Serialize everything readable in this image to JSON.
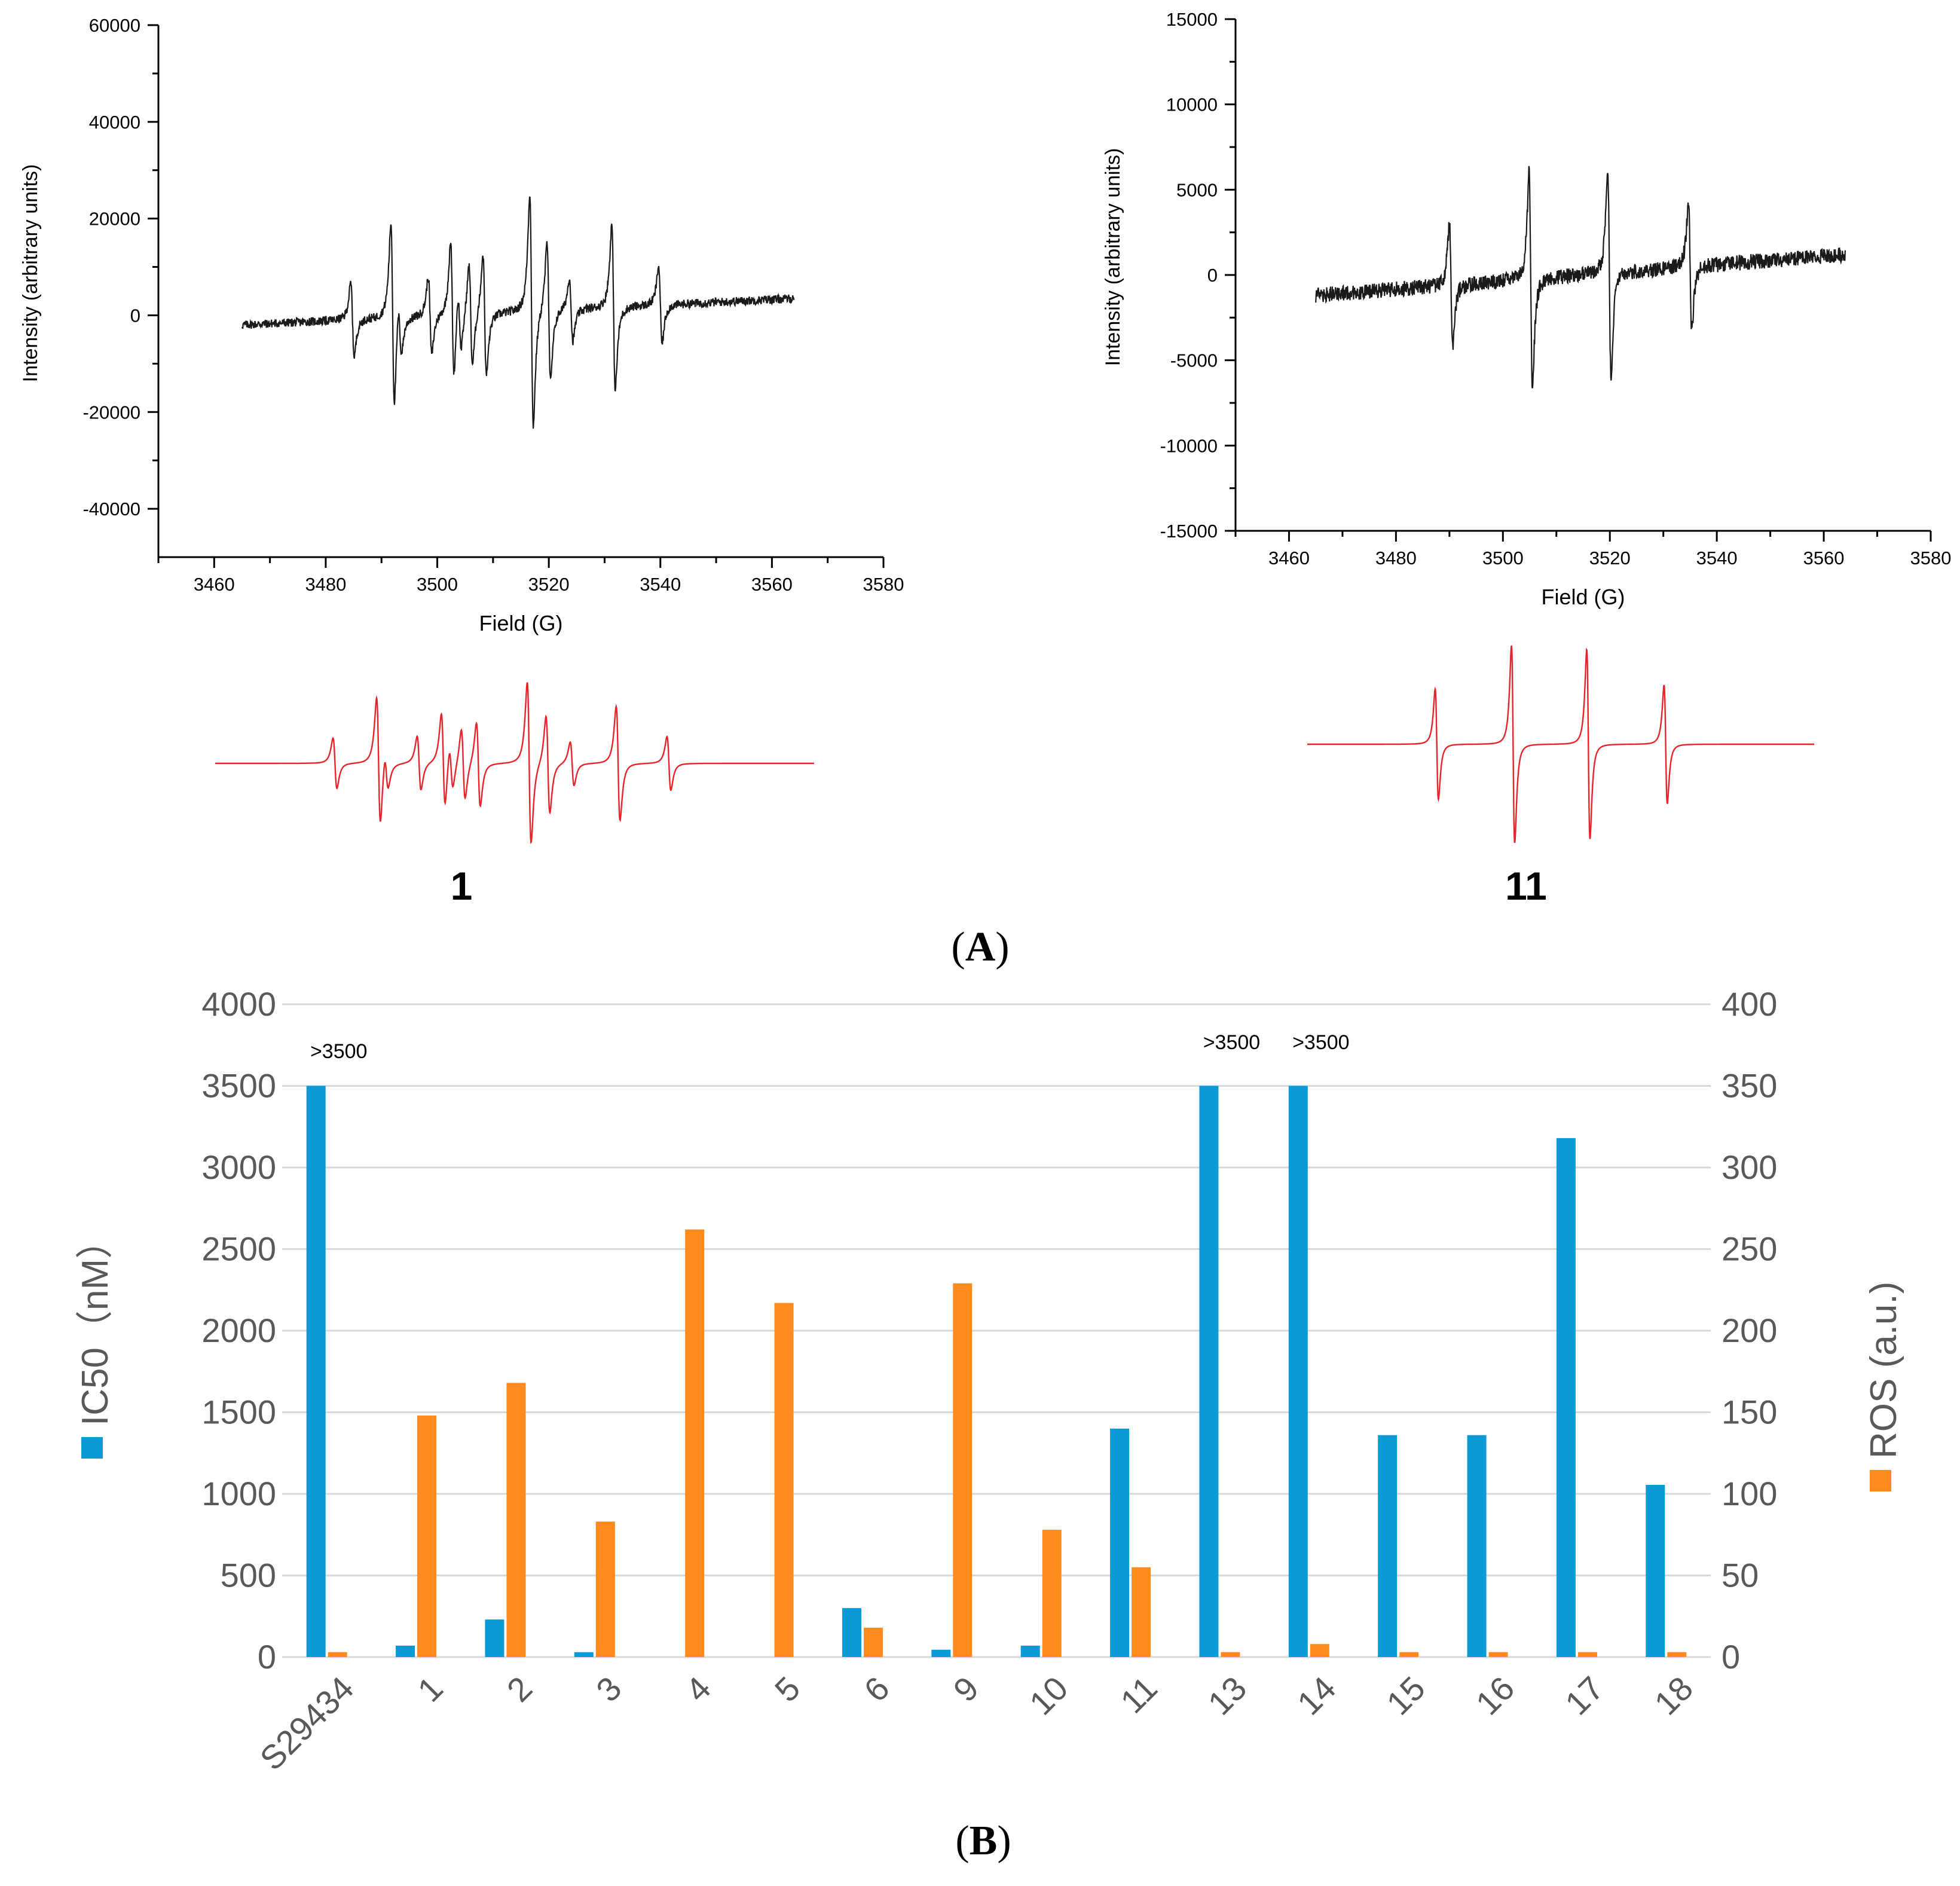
{
  "panel_a": {
    "label": "A",
    "spectra": [
      {
        "compound_label": "1",
        "title": "",
        "xlabel": "Field (G)",
        "ylabel": "Intensity (arbitrary units)",
        "xlim": [
          3450,
          3580
        ],
        "ylim": [
          -50000,
          60000
        ],
        "xticks": [
          3460,
          3480,
          3500,
          3520,
          3540,
          3560,
          3580
        ],
        "yticks": [
          -40000,
          -20000,
          0,
          20000,
          40000,
          60000
        ],
        "field_range": [
          3465,
          3564
        ],
        "baseline": {
          "start": -2000,
          "end": 3500
        },
        "noise": 900,
        "lines": [
          {
            "x": 3484.8,
            "a": 15000
          },
          {
            "x": 3492.0,
            "a": 38000
          },
          {
            "x": 3493.3,
            "a": 11000
          },
          {
            "x": 3498.7,
            "a": 16000
          },
          {
            "x": 3502.7,
            "a": 28000
          },
          {
            "x": 3504.0,
            "a": 13000
          },
          {
            "x": 3506.0,
            "a": 21000
          },
          {
            "x": 3508.5,
            "a": 25000
          },
          {
            "x": 3516.9,
            "a": 48000
          },
          {
            "x": 3520.0,
            "a": 29000
          },
          {
            "x": 3524.0,
            "a": 13000
          },
          {
            "x": 3531.6,
            "a": 34000
          },
          {
            "x": 3540.0,
            "a": 16000
          }
        ]
      },
      {
        "compound_label": "11",
        "title": "",
        "xlabel": "Field (G)",
        "ylabel": "Intensity (arbitrary units)",
        "xlim": [
          3450,
          3580
        ],
        "ylim": [
          -15000,
          15000
        ],
        "xticks": [
          3460,
          3480,
          3500,
          3520,
          3540,
          3560,
          3580
        ],
        "yticks": [
          -15000,
          -10000,
          -5000,
          0,
          5000,
          10000,
          15000
        ],
        "field_range": [
          3465,
          3564
        ],
        "baseline": {
          "start": -1200,
          "end": 1200
        },
        "noise": 450,
        "lines": [
          {
            "x": 3490.3,
            "a": 7000
          },
          {
            "x": 3505.2,
            "a": 12500
          },
          {
            "x": 3519.9,
            "a": 12000
          },
          {
            "x": 3535.0,
            "a": 7500
          }
        ]
      }
    ]
  },
  "panel_b": {
    "label": "B",
    "legend": {
      "left_symbol_color": "#0a9bd7",
      "right_symbol_color": "#ff8a1d"
    },
    "annotations": [
      {
        "category": "S29434",
        "text": ">3500"
      },
      {
        "category": "13",
        "text": ">3500"
      },
      {
        "category": "14",
        "text": ">3500"
      }
    ]
  },
  "chart_data": [
    {
      "type": "line",
      "title": "",
      "xlabel": "Field (G)",
      "ylabel": "Intensity (arbitrary units)",
      "xlim": [
        3450,
        3580
      ],
      "ylim": [
        -50000,
        60000
      ],
      "series": [
        {
          "name": "experimental spectrum 1",
          "color": "#1a1a1a"
        },
        {
          "name": "simulated spectrum 1",
          "color": "#e8242a"
        }
      ]
    },
    {
      "type": "line",
      "title": "",
      "xlabel": "Field (G)",
      "ylabel": "Intensity (arbitrary units)",
      "xlim": [
        3450,
        3580
      ],
      "ylim": [
        -15000,
        15000
      ],
      "series": [
        {
          "name": "experimental spectrum 11",
          "color": "#1a1a1a"
        },
        {
          "name": "simulated spectrum 11",
          "color": "#e8242a"
        }
      ]
    },
    {
      "type": "bar",
      "title": "",
      "categories": [
        "S29434",
        "1",
        "2",
        "3",
        "4",
        "5",
        "6",
        "9",
        "10",
        "11",
        "13",
        "14",
        "15",
        "16",
        "17",
        "18"
      ],
      "xlabel": "",
      "ylabel": "IC50（nM）",
      "ylabel2": "ROS (a.u.)",
      "ylim": [
        0,
        4000
      ],
      "yticks": [
        0,
        500,
        1000,
        1500,
        2000,
        2500,
        3000,
        3500,
        4000
      ],
      "ylim2": [
        0,
        400
      ],
      "yticks2": [
        0,
        50,
        100,
        150,
        200,
        250,
        300,
        350,
        400
      ],
      "grid": true,
      "series": [
        {
          "name": "IC50",
          "axis": "left",
          "color": "#0a9bd7",
          "values": [
            3500,
            70,
            230,
            30,
            0,
            0,
            300,
            45,
            70,
            1400,
            3500,
            3500,
            1360,
            1360,
            3180,
            1055
          ]
        },
        {
          "name": "ROS",
          "axis": "right",
          "color": "#ff8a1d",
          "values": [
            3,
            148,
            168,
            83,
            262,
            217,
            18,
            229,
            78,
            55,
            3,
            8,
            3,
            3,
            3,
            3
          ]
        }
      ]
    }
  ]
}
